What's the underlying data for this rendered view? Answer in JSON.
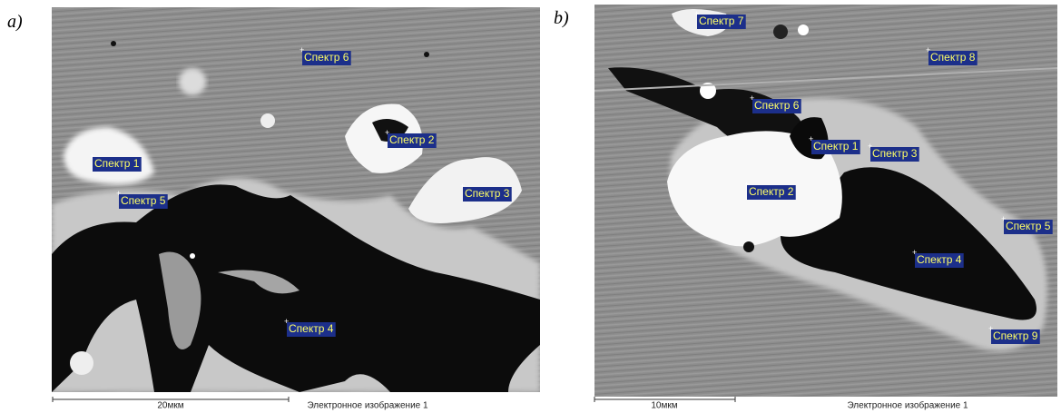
{
  "panels": [
    {
      "label": "a)",
      "spectra": [
        "Спектр 6",
        "Спектр 2",
        "Спектр 1",
        "Спектр 5",
        "Спектр 3",
        "Спектр 4"
      ],
      "scale_bar": "20мкм",
      "caption": "Электронное изображение 1"
    },
    {
      "label": "b)",
      "spectra": [
        "Спектр 7",
        "Спектр 8",
        "Спектр 6",
        "Спектр 1",
        "Спектр 3",
        "Спектр 2",
        "Спектр 5",
        "Спектр 4",
        "Спектр 9"
      ],
      "scale_bar": "10мкм",
      "caption": "Электронное изображение 1"
    }
  ]
}
